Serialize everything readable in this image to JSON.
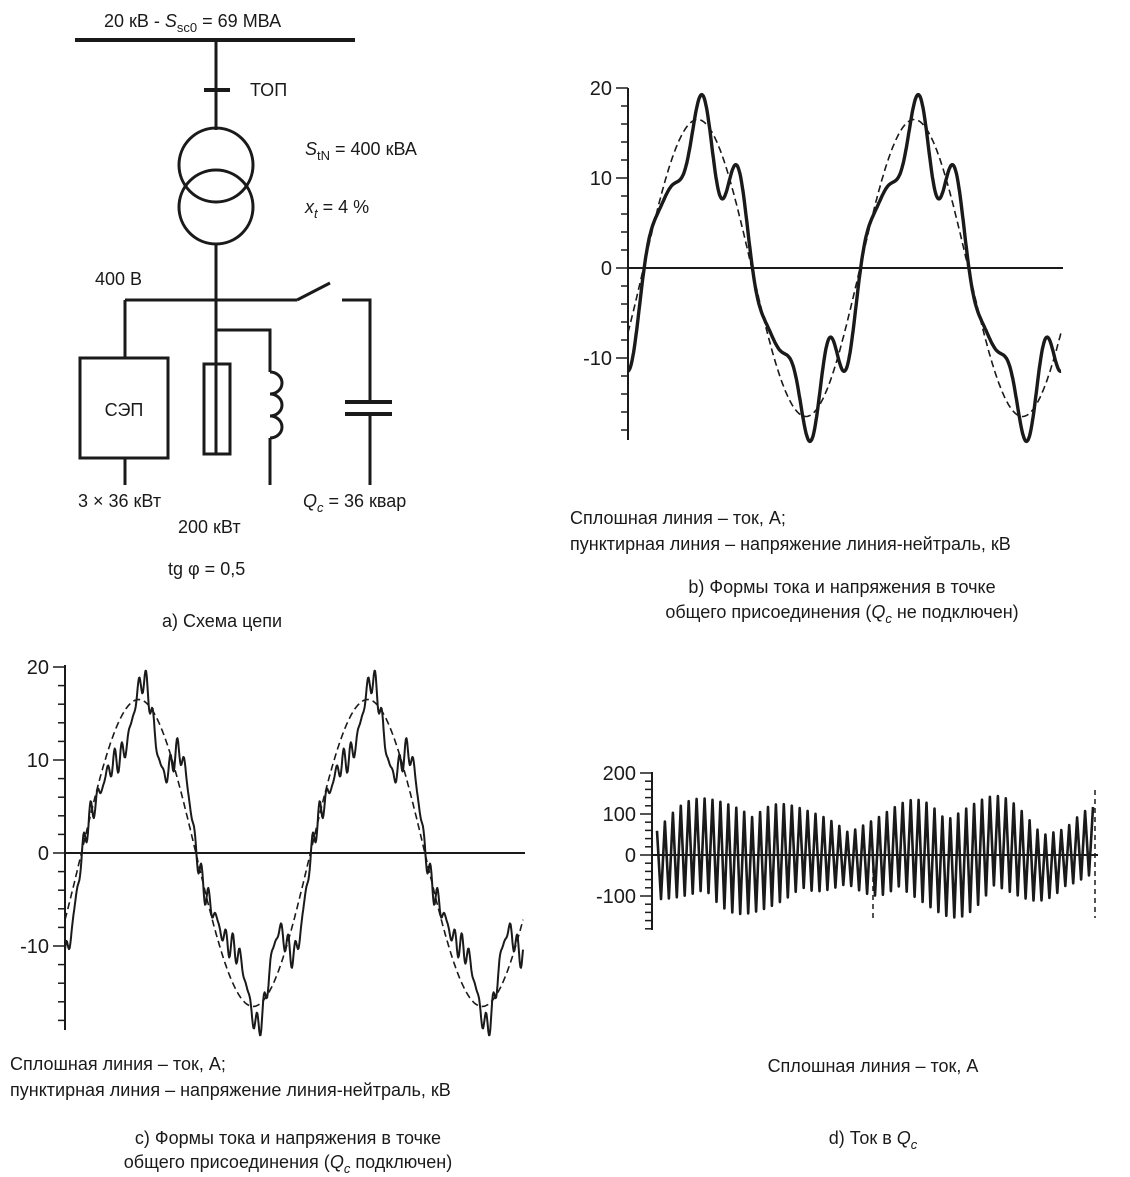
{
  "schematic": {
    "bus_voltage_pre": "20 кВ - ",
    "bus_sym": "S",
    "bus_sub": "sc0",
    "bus_post": " = 69 МВА",
    "fuse_label": "ТОП",
    "trans_s_sym": "S",
    "trans_s_sub": "tN",
    "trans_s_post": " = 400 кВА",
    "trans_x_sym": "x",
    "trans_x_sub": "t",
    "trans_x_post": " = 4 %",
    "lv_voltage": "400 В",
    "load_box": "СЭП",
    "load_rating": "3 × 36 кВт",
    "res_rating": "200 кВт",
    "cap_sym": "Q",
    "cap_sub": "c",
    "cap_post": " = 36 квар",
    "tg": "tg φ = 0,5",
    "caption": "а) Схема цепи"
  },
  "panel_b": {
    "legend1": "Сплошная линия – ток, А;",
    "legend2": "пунктирная линия – напряжение линия-нейтраль, кВ",
    "cap1": "b) Формы тока и напряжения в точке",
    "cap2_pre": "общего присоединения (",
    "cap2_sym": "Q",
    "cap2_sub": "c",
    "cap2_post": " не подключен)"
  },
  "panel_c": {
    "legend1": "Сплошная линия – ток, А;",
    "legend2": "пунктирная линия – напряжение линия-нейтраль, кВ",
    "cap1": "c) Формы тока и напряжения в точке",
    "cap2_pre": "общего присоединения (",
    "cap2_sym": "Q",
    "cap2_sub": "c",
    "cap2_post": " подключен)"
  },
  "panel_d": {
    "legend": "Сплошная линия – ток, А",
    "cap_pre": "d) Ток в ",
    "cap_sym": "Q",
    "cap_sub": "c"
  },
  "chart_data": [
    {
      "id": "b",
      "type": "line",
      "ylim": [
        -19,
        20
      ],
      "yticks": [
        "20",
        "10",
        "0",
        "-10"
      ],
      "grid": false,
      "series": [
        {
          "values_description": "current",
          "style": "solid",
          "amplitude": 17,
          "periods": 2
        },
        {
          "values_description": "voltage",
          "style": "dashed",
          "amplitude": 16,
          "periods": 2
        }
      ]
    },
    {
      "id": "c",
      "type": "line",
      "ylim": [
        -19,
        20
      ],
      "yticks": [
        "20",
        "10",
        "0",
        "-10"
      ],
      "grid": false,
      "series": [
        {
          "values_description": "current",
          "style": "solid",
          "amplitude": 17,
          "periods": 2
        },
        {
          "values_description": "voltage",
          "style": "dashed",
          "amplitude": 16,
          "periods": 2
        }
      ]
    },
    {
      "id": "d",
      "type": "line",
      "ylim": [
        -150,
        200
      ],
      "yticks": [
        "200",
        "100",
        "0",
        "-100"
      ],
      "grid": false,
      "series": [
        {
          "values_description": "current",
          "style": "solid",
          "amplitude": 180
        }
      ]
    }
  ]
}
